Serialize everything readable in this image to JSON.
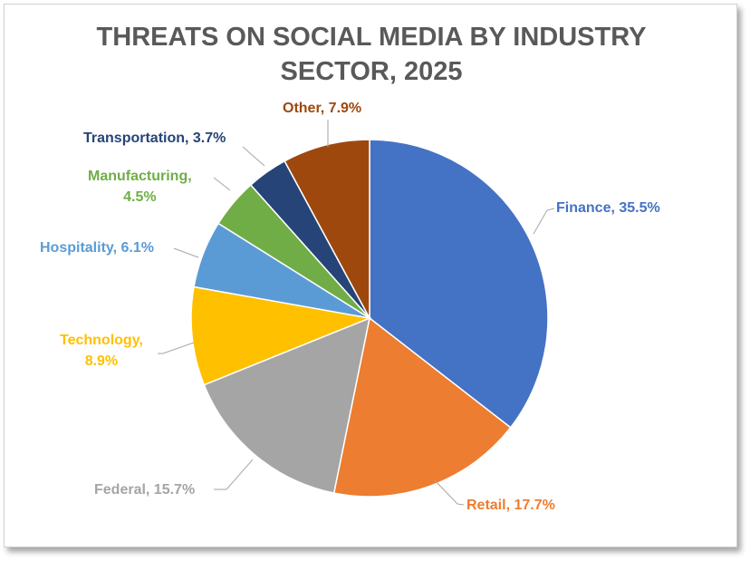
{
  "chart_data": {
    "type": "pie",
    "title_lines": [
      "THREATS ON SOCIAL MEDIA BY INDUSTRY",
      "SECTOR, 2025"
    ],
    "start": "12 o'clock, clockwise",
    "slices": [
      {
        "label": "Finance",
        "value": 35.5,
        "text": "Finance, 35.5%",
        "color": "#4472C4"
      },
      {
        "label": "Retail",
        "value": 17.7,
        "text": "Retail, 17.7%",
        "color": "#ED7D31"
      },
      {
        "label": "Federal",
        "value": 15.7,
        "text": "Federal, 15.7%",
        "color": "#A5A5A5"
      },
      {
        "label": "Technology",
        "value": 8.9,
        "text_lines": [
          "Technology,",
          "8.9%"
        ],
        "color": "#FFC000"
      },
      {
        "label": "Hospitality",
        "value": 6.1,
        "text": "Hospitality, 6.1%",
        "color": "#5B9BD5"
      },
      {
        "label": "Manufacturing",
        "value": 4.5,
        "text_lines": [
          "Manufacturing,",
          "4.5%"
        ],
        "color": "#70AD47"
      },
      {
        "label": "Transportation",
        "value": 3.7,
        "text": "Transportation, 3.7%",
        "color": "#264478"
      },
      {
        "label": "Other",
        "value": 7.9,
        "text": "Other, 7.9%",
        "color": "#9E480E"
      }
    ]
  }
}
